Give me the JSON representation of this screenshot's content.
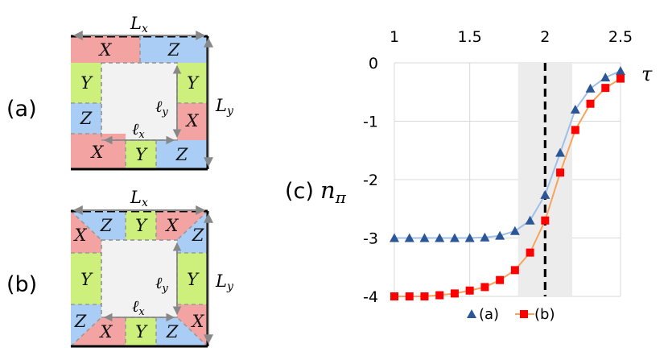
{
  "colors": {
    "red": "#f4a3a3",
    "blue": "#a9cdf5",
    "green": "#cdf07c",
    "bulk": "#f2f2f2",
    "seriesA": "#2b5797",
    "seriesA_line": "#9fc0e8",
    "seriesB": "#ff0000",
    "seriesB_line": "#f7a35c",
    "shade": "#ececec"
  },
  "panels": {
    "a": {
      "label": "(a)",
      "Lx": "L",
      "Lx_sub": "x",
      "Ly": "L",
      "Ly_sub": "y",
      "lx": "ℓ",
      "lx_sub": "x",
      "ly": "ℓ",
      "ly_sub": "y",
      "cells": [
        "X",
        "Z",
        "Y",
        "Y",
        "Z",
        "X",
        "X",
        "Y",
        "Z"
      ]
    },
    "b": {
      "label": "(b)",
      "Lx": "L",
      "Lx_sub": "x",
      "Ly": "L",
      "Ly_sub": "y",
      "lx": "ℓ",
      "lx_sub": "x",
      "ly": "ℓ",
      "ly_sub": "y",
      "cells": [
        "Z",
        "Y",
        "X",
        "X",
        "Z",
        "Y",
        "Y",
        "Z",
        "X",
        "X",
        "Y",
        "Z"
      ]
    },
    "c": {
      "label": "(c)",
      "ylabel": "n",
      "ylabel_sub": "π",
      "xlabel": "τ"
    }
  },
  "chart_data": {
    "type": "line",
    "xlabel": "τ",
    "ylabel": "nπ",
    "xlim": [
      1,
      2.5
    ],
    "ylim": [
      -4,
      0
    ],
    "x_ticks": [
      "1",
      "1.5",
      "2",
      "2.5"
    ],
    "y_ticks": [
      "0",
      "-1",
      "-2",
      "-3",
      "-4"
    ],
    "x_tick_values": [
      1,
      1.5,
      2,
      2.5
    ],
    "y_tick_values": [
      0,
      -1,
      -2,
      -3,
      -4
    ],
    "x_axis_position": "top",
    "grid": true,
    "vline_x": 2.0,
    "shaded_band": [
      1.82,
      2.18
    ],
    "legend": "bottom",
    "series": [
      {
        "name": "(a)",
        "marker": "triangle",
        "x": [
          1.0,
          1.1,
          1.2,
          1.3,
          1.4,
          1.5,
          1.6,
          1.7,
          1.8,
          1.9,
          2.0,
          2.1,
          2.2,
          2.3,
          2.4,
          2.5
        ],
        "y": [
          -3.0,
          -3.0,
          -3.0,
          -3.0,
          -3.0,
          -3.0,
          -2.99,
          -2.96,
          -2.88,
          -2.7,
          -2.26,
          -1.54,
          -0.8,
          -0.44,
          -0.25,
          -0.14
        ]
      },
      {
        "name": "(b)",
        "marker": "square",
        "x": [
          1.0,
          1.1,
          1.2,
          1.3,
          1.4,
          1.5,
          1.6,
          1.7,
          1.8,
          1.9,
          2.0,
          2.1,
          2.2,
          2.3,
          2.4,
          2.5
        ],
        "y": [
          -4.0,
          -4.0,
          -4.0,
          -3.98,
          -3.95,
          -3.9,
          -3.84,
          -3.72,
          -3.55,
          -3.25,
          -2.7,
          -1.88,
          -1.15,
          -0.7,
          -0.43,
          -0.27
        ]
      }
    ]
  }
}
